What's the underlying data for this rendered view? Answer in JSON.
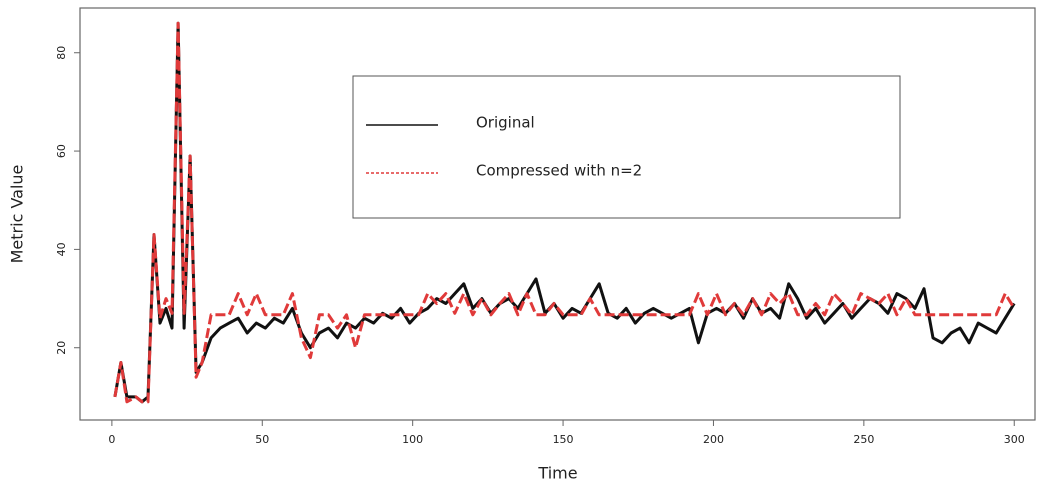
{
  "chart_data": {
    "type": "line",
    "x_label": "Time",
    "y_label": "Metric Value",
    "x": [
      1,
      3,
      5,
      8,
      10,
      12,
      14,
      16,
      18,
      20,
      22,
      24,
      26,
      28,
      30,
      33,
      36,
      39,
      42,
      45,
      48,
      51,
      54,
      57,
      60,
      63,
      66,
      69,
      72,
      75,
      78,
      81,
      84,
      87,
      90,
      93,
      96,
      99,
      102,
      105,
      108,
      111,
      114,
      117,
      120,
      123,
      126,
      129,
      132,
      135,
      138,
      141,
      144,
      147,
      150,
      153,
      156,
      159,
      162,
      165,
      168,
      171,
      174,
      177,
      180,
      183,
      186,
      189,
      192,
      195,
      198,
      201,
      204,
      207,
      210,
      213,
      216,
      219,
      222,
      225,
      228,
      231,
      234,
      237,
      240,
      243,
      246,
      249,
      252,
      255,
      258,
      261,
      264,
      267,
      270,
      273,
      276,
      279,
      282,
      285,
      288,
      291,
      294,
      297,
      300
    ],
    "series": [
      {
        "name": "Original",
        "color": "#111111",
        "dashed": false,
        "values": [
          10,
          17,
          10,
          10,
          9,
          10,
          43,
          25,
          28,
          24,
          86,
          24,
          59,
          15,
          17,
          22,
          24,
          25,
          26,
          23,
          25,
          24,
          26,
          25,
          28,
          23,
          20,
          23,
          24,
          22,
          25,
          24,
          26,
          25,
          27,
          26,
          28,
          25,
          27,
          28,
          30,
          29,
          31,
          33,
          28,
          30,
          27,
          29,
          30,
          28,
          31,
          34,
          27,
          29,
          26,
          28,
          27,
          30,
          33,
          27,
          26,
          28,
          25,
          27,
          28,
          27,
          26,
          27,
          28,
          21,
          27,
          28,
          27,
          29,
          26,
          30,
          27,
          28,
          26,
          33,
          30,
          26,
          28,
          25,
          27,
          29,
          26,
          28,
          30,
          29,
          27,
          31,
          30,
          28,
          32,
          22,
          21,
          23,
          24,
          21,
          25,
          24,
          23,
          26,
          29
        ]
      },
      {
        "name": "Compressed with n=2",
        "color": "#e03a3a",
        "dashed": true,
        "values": [
          10,
          17,
          9,
          10,
          9,
          9,
          43,
          26,
          30,
          27,
          86,
          27,
          59,
          14,
          17,
          26.7,
          26.7,
          26.7,
          31,
          26.7,
          31,
          26.7,
          26.7,
          26.7,
          31,
          22,
          18,
          26.7,
          26.7,
          24,
          26.7,
          20,
          26.7,
          26.7,
          26.7,
          26.7,
          26.7,
          26.7,
          26.7,
          31,
          29,
          31,
          27,
          31,
          26.7,
          30,
          26.7,
          29,
          31,
          26.7,
          31,
          26.7,
          26.7,
          29,
          26.7,
          26.7,
          26.7,
          30,
          26.7,
          26.7,
          26.7,
          26.7,
          26.7,
          26.7,
          26.7,
          26.7,
          26.7,
          26.7,
          26.7,
          31,
          26.7,
          31,
          26.7,
          29,
          26.7,
          30,
          26.7,
          31,
          29,
          31,
          26.7,
          26.7,
          29,
          26.7,
          31,
          29,
          26.7,
          31,
          30,
          29,
          31,
          26.7,
          30,
          26.7,
          26.7,
          26.7,
          26.7,
          26.7,
          26.7,
          26.7,
          26.7,
          26.7,
          26.7,
          31,
          28
        ]
      }
    ],
    "xlim": [
      -10.6,
      306.9
    ],
    "ylim": [
      5.3,
      89.1
    ],
    "xticks": [
      0,
      50,
      100,
      150,
      200,
      250,
      300
    ],
    "yticks": [
      20,
      40,
      60,
      80
    ],
    "legend": "top-center"
  }
}
